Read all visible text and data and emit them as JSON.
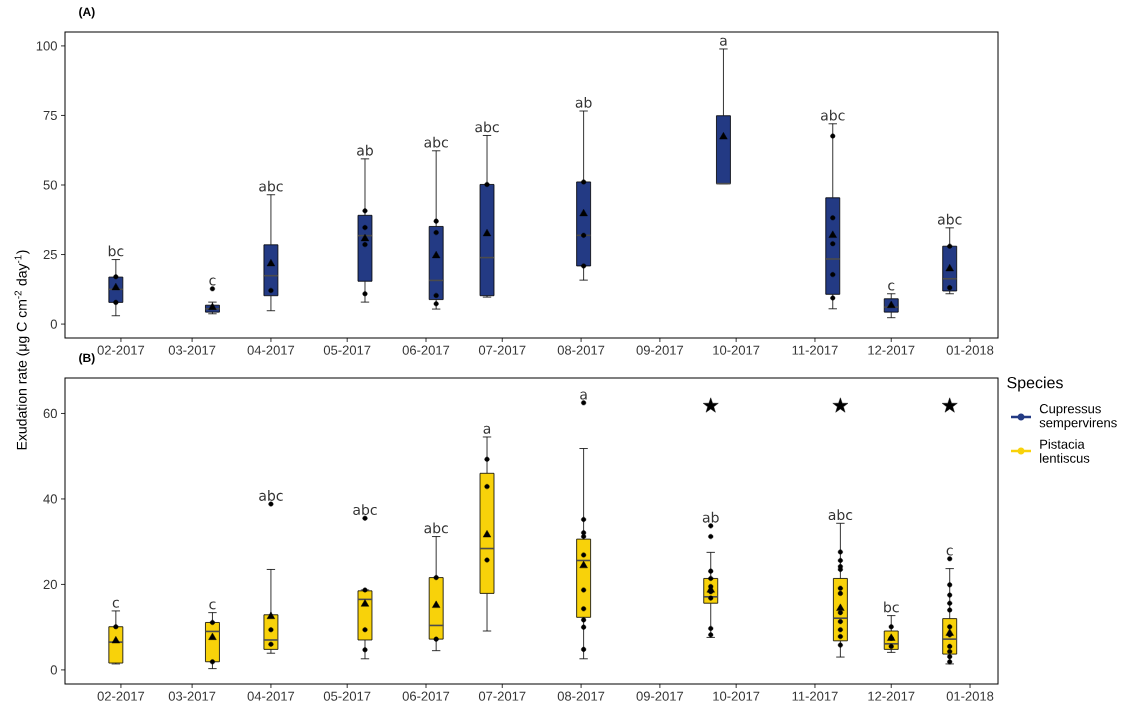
{
  "chart_data": [
    {
      "type": "box",
      "title": "(A)",
      "ylabel": "Exudation rate  (μg C cm$^{-2}$ day$^{-1}$)",
      "legend_title": "Species",
      "legend": "right",
      "xlim": [
        "2017-01-10",
        "2018-01-12"
      ],
      "xticks": [
        {
          "value": "2017-02-01",
          "label": "02-2017"
        },
        {
          "value": "2017-03-01",
          "label": "03-2017"
        },
        {
          "value": "2017-04-01",
          "label": "04-2017"
        },
        {
          "value": "2017-05-01",
          "label": "05-2017"
        },
        {
          "value": "2017-06-01",
          "label": "06-2017"
        },
        {
          "value": "2017-07-01",
          "label": "07-2017"
        },
        {
          "value": "2017-08-01",
          "label": "08-2017"
        },
        {
          "value": "2017-09-01",
          "label": "09-2017"
        },
        {
          "value": "2017-10-01",
          "label": "10-2017"
        },
        {
          "value": "2017-11-01",
          "label": "11-2017"
        },
        {
          "value": "2017-12-01",
          "label": "12-2017"
        },
        {
          "value": "2018-01-01",
          "label": "01-2018"
        }
      ],
      "ylim": [
        -5,
        105
      ],
      "yticks": [
        0,
        25,
        50,
        75,
        100
      ],
      "annotations": [
        "bc",
        "c",
        "abc",
        "ab",
        "abc",
        "abc",
        "ab",
        "a",
        "abc",
        "c",
        "abc"
      ],
      "series": [
        {
          "name": "Cupressus sempervirens",
          "color": "#233a84",
          "x": [
            "2017-01-30",
            "2017-03-09",
            "2017-04-01",
            "2017-05-08",
            "2017-06-05",
            "2017-06-25",
            "2017-08-02",
            "2017-09-26",
            "2017-11-08",
            "2017-12-01",
            "2017-12-24"
          ],
          "boxes": [
            {
              "low": 3.0,
              "q1": 7.8,
              "median": 12.5,
              "q3": 16.9,
              "high": 23.2,
              "mean": 13.1
            },
            {
              "low": 3.7,
              "q1": 4.3,
              "median": 5.5,
              "q3": 6.8,
              "high": 7.9,
              "mean": 6.0,
              "outliers": [
                12.7
              ]
            },
            {
              "low": 4.8,
              "q1": 10.2,
              "median": 17.4,
              "q3": 28.5,
              "high": 46.5,
              "mean": 21.7
            },
            {
              "low": 7.9,
              "q1": 15.4,
              "median": 31.8,
              "q3": 39.1,
              "high": 59.4,
              "mean": 30.7
            },
            {
              "low": 5.4,
              "q1": 8.8,
              "median": 15.7,
              "q3": 35.1,
              "high": 62.3,
              "mean": 24.6
            },
            {
              "low": 9.7,
              "q1": 10.2,
              "median": 23.9,
              "q3": 50.2,
              "high": 67.8,
              "mean": 32.5
            },
            {
              "low": 15.8,
              "q1": 20.9,
              "median": 31.9,
              "q3": 51.1,
              "high": 76.6,
              "mean": 39.7
            },
            {
              "low": 50.5,
              "q1": 50.5,
              "median": 50.5,
              "q3": 74.9,
              "high": 98.9,
              "mean": 67.3
            },
            {
              "low": 5.5,
              "q1": 10.7,
              "median": 23.4,
              "q3": 45.4,
              "high": 72.0,
              "mean": 31.9
            },
            {
              "low": 2.3,
              "q1": 4.3,
              "median": 6.1,
              "q3": 9.1,
              "high": 10.9,
              "mean": 6.7
            },
            {
              "low": 10.9,
              "q1": 11.9,
              "median": 16.3,
              "q3": 28.0,
              "high": 34.6,
              "mean": 19.9
            }
          ]
        },
        {
          "type": "scatter",
          "color": "#000000",
          "marker": "circle",
          "x": [
            "2017-01-30",
            "2017-01-30",
            "2017-04-01",
            "2017-05-08",
            "2017-05-08",
            "2017-05-08",
            "2017-05-08",
            "2017-06-05",
            "2017-06-05",
            "2017-06-05",
            "2017-06-05",
            "2017-06-25",
            "2017-08-02",
            "2017-08-02",
            "2017-08-02",
            "2017-11-08",
            "2017-11-08",
            "2017-11-08",
            "2017-11-08",
            "2017-11-08",
            "2017-12-24",
            "2017-12-24"
          ],
          "values": [
            17,
            7.8,
            12.1,
            40.7,
            34.7,
            28.6,
            10.9,
            37,
            32.9,
            10.3,
            7.3,
            50.2,
            51.1,
            31.9,
            20.9,
            67.6,
            38.2,
            28.9,
            17.8,
            9.4,
            28,
            13.1
          ]
        }
      ]
    },
    {
      "type": "box",
      "title": "(B)",
      "legend": "right",
      "xlim": [
        "2017-01-10",
        "2018-01-12"
      ],
      "xticks": [
        {
          "value": "2017-02-01",
          "label": "02-2017"
        },
        {
          "value": "2017-03-01",
          "label": "03-2017"
        },
        {
          "value": "2017-04-01",
          "label": "04-2017"
        },
        {
          "value": "2017-05-01",
          "label": "05-2017"
        },
        {
          "value": "2017-06-01",
          "label": "06-2017"
        },
        {
          "value": "2017-07-01",
          "label": "07-2017"
        },
        {
          "value": "2017-08-01",
          "label": "08-2017"
        },
        {
          "value": "2017-09-01",
          "label": "09-2017"
        },
        {
          "value": "2017-10-01",
          "label": "10-2017"
        },
        {
          "value": "2017-11-01",
          "label": "11-2017"
        },
        {
          "value": "2017-12-01",
          "label": "12-2017"
        },
        {
          "value": "2018-01-01",
          "label": "01-2018"
        }
      ],
      "ylim": [
        -3.3,
        68.3
      ],
      "yticks": [
        0,
        20,
        40,
        60
      ],
      "annotations": [
        "c",
        "c",
        "abc",
        "abc",
        "abc",
        "a",
        "a",
        "ab",
        "abc",
        "bc",
        "c"
      ],
      "series": [
        {
          "name": "Pistacia lentiscus",
          "color": "#f8d20a",
          "x": [
            "2017-01-30",
            "2017-03-09",
            "2017-04-01",
            "2017-05-08",
            "2017-06-05",
            "2017-06-25",
            "2017-08-02",
            "2017-09-21",
            "2017-11-11",
            "2017-12-01",
            "2017-12-24"
          ],
          "boxes": [
            {
              "low": 1.4,
              "q1": 1.6,
              "median": 6.5,
              "q3": 10.1,
              "high": 13.8,
              "mean": 6.8
            },
            {
              "low": 0.3,
              "q1": 1.9,
              "median": 9.0,
              "q3": 11.1,
              "high": 13.4,
              "mean": 7.6
            },
            {
              "low": 3.9,
              "q1": 4.8,
              "median": 7.0,
              "q3": 12.9,
              "high": 23.5,
              "mean": 12.5,
              "outliers": [
                38.8
              ]
            },
            {
              "low": 2.6,
              "q1": 7.0,
              "median": 16.5,
              "q3": 18.5,
              "high": 18.7,
              "mean": 15.4,
              "outliers": [
                35.5
              ]
            },
            {
              "low": 4.5,
              "q1": 7.2,
              "median": 10.4,
              "q3": 21.6,
              "high": 31.2,
              "mean": 15.1
            },
            {
              "low": 9.1,
              "q1": 17.9,
              "median": 28.4,
              "q3": 46.0,
              "high": 54.5,
              "mean": 31.6
            },
            {
              "low": 2.6,
              "q1": 12.3,
              "median": 25.6,
              "q3": 30.6,
              "high": 51.8,
              "mean": 24.4,
              "outliers": [
                62.5
              ]
            },
            {
              "low": 7.6,
              "q1": 15.6,
              "median": 17.1,
              "q3": 21.4,
              "high": 27.5,
              "mean": 18.7,
              "outliers": [
                33.7,
                31.2
              ]
            },
            {
              "low": 3.0,
              "q1": 6.8,
              "median": 12.1,
              "q3": 21.4,
              "high": 34.3,
              "mean": 14.4
            },
            {
              "low": 4.1,
              "q1": 4.8,
              "median": 6.1,
              "q3": 9.1,
              "high": 12.7,
              "mean": 7.4
            },
            {
              "low": 1.4,
              "q1": 3.7,
              "median": 7.2,
              "q3": 12.0,
              "high": 23.7,
              "mean": 8.6,
              "outliers": [
                26.0
              ]
            }
          ]
        },
        {
          "type": "scatter",
          "color": "#000000",
          "marker": "circle",
          "x": [
            "2017-01-30",
            "2017-03-09",
            "2017-03-09",
            "2017-04-01",
            "2017-04-01",
            "2017-05-08",
            "2017-05-08",
            "2017-05-08",
            "2017-06-05",
            "2017-06-05",
            "2017-06-25",
            "2017-06-25",
            "2017-06-25",
            "2017-08-02",
            "2017-08-02",
            "2017-08-02",
            "2017-08-02",
            "2017-08-02",
            "2017-08-02",
            "2017-08-02",
            "2017-08-02",
            "2017-08-02",
            "2017-09-21",
            "2017-09-21",
            "2017-09-21",
            "2017-09-21",
            "2017-09-21",
            "2017-09-21",
            "2017-09-21",
            "2017-11-11",
            "2017-11-11",
            "2017-11-11",
            "2017-11-11",
            "2017-11-11",
            "2017-11-11",
            "2017-11-11",
            "2017-11-11",
            "2017-11-11",
            "2017-11-11",
            "2017-11-11",
            "2017-12-01",
            "2017-12-01",
            "2017-12-01",
            "2017-12-24",
            "2017-12-24",
            "2017-12-24",
            "2017-12-24",
            "2017-12-24",
            "2017-12-24",
            "2017-12-24",
            "2017-12-24",
            "2017-12-24",
            "2017-12-24"
          ],
          "values": [
            10.1,
            11.1,
            1.9,
            9.4,
            6,
            18.7,
            9.4,
            4.7,
            21.6,
            7.2,
            49.3,
            42.9,
            25.7,
            35.2,
            32.1,
            31.2,
            26.9,
            18.7,
            14.3,
            11.7,
            10,
            4.8,
            23.1,
            21.4,
            19.5,
            18.3,
            16.8,
            9.7,
            8.2,
            27.6,
            25.6,
            24.2,
            23.5,
            19.1,
            17.9,
            13.4,
            11.3,
            9.4,
            7.8,
            5.8,
            10.1,
            7.4,
            5.5,
            19.9,
            17.5,
            15.6,
            14,
            10.1,
            8.2,
            5.5,
            4.3,
            3.1,
            1.9
          ]
        },
        {
          "type": "scatter",
          "color": "#000000",
          "marker": "star",
          "x": [
            "2017-09-21",
            "2017-11-11",
            "2017-12-24"
          ],
          "values": [
            61.8,
            61.8,
            61.8
          ]
        }
      ]
    }
  ]
}
